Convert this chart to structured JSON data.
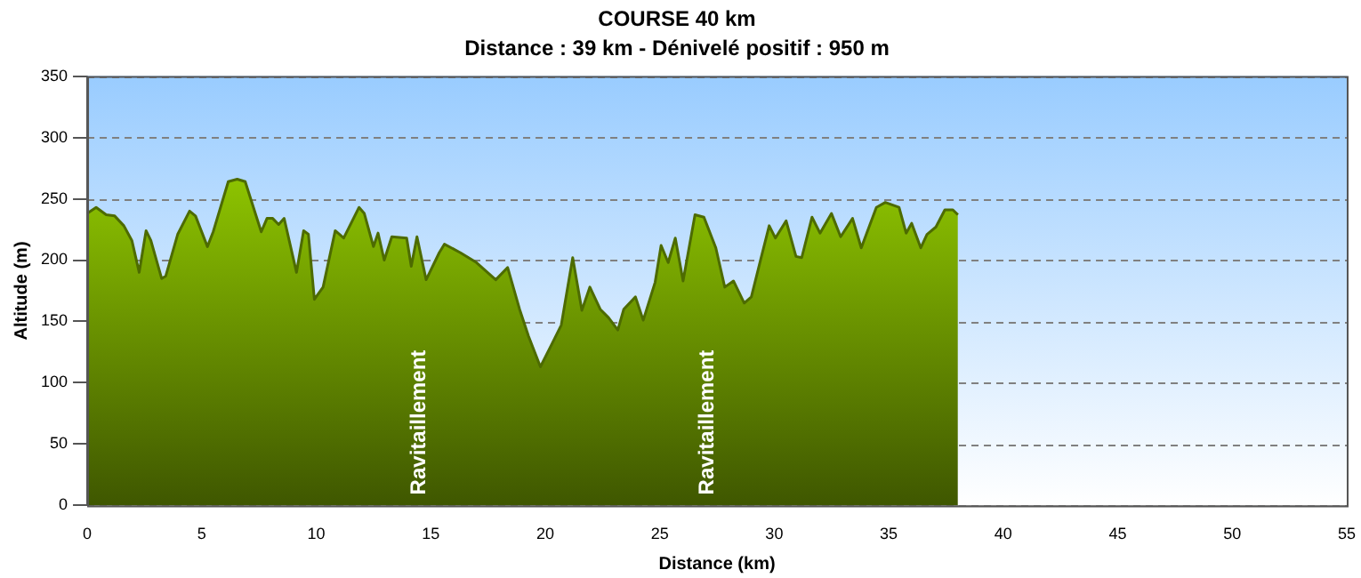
{
  "chart_data": {
    "type": "area",
    "title": "COURSE 40 km",
    "subtitle": "Distance : 39 km - Dénivelé positif : 950 m",
    "xlabel": "Distance (km)",
    "ylabel": "Altitude (m)",
    "x": [
      0,
      0.39,
      0.83,
      1.2,
      1.6,
      1.95,
      2.27,
      2.57,
      2.78,
      3.25,
      3.43,
      3.95,
      4.47,
      4.73,
      5.25,
      5.5,
      6.16,
      6.55,
      6.9,
      7.6,
      7.85,
      8.1,
      8.36,
      8.6,
      9.14,
      9.45,
      9.66,
      9.92,
      10.3,
      10.83,
      11.2,
      11.87,
      12.1,
      12.5,
      12.7,
      12.97,
      13.3,
      13.95,
      14.15,
      14.4,
      14.8,
      15.37,
      15.6,
      16.3,
      17.0,
      17.84,
      18.36,
      18.88,
      19.27,
      19.79,
      20.3,
      20.7,
      21.2,
      21.6,
      21.95,
      22.4,
      22.77,
      23.17,
      23.43,
      23.94,
      24.28,
      24.8,
      25.06,
      25.37,
      25.68,
      26.02,
      26.54,
      26.93,
      27.45,
      27.84,
      28.22,
      28.69,
      29.0,
      29.4,
      29.78,
      30.05,
      30.52,
      30.95,
      31.2,
      31.65,
      32.0,
      32.5,
      32.9,
      33.42,
      33.8,
      34.46,
      34.85,
      35.45,
      35.76,
      36.0,
      36.4,
      36.67,
      37.06,
      37.45,
      37.8,
      38.02
    ],
    "series": [
      {
        "color": "#8cc200",
        "values": [
          238,
          243,
          237,
          236,
          228,
          216,
          190,
          224,
          216,
          185,
          187,
          221,
          240,
          236,
          211,
          223,
          264,
          266,
          264,
          223,
          234,
          234,
          229,
          234,
          190,
          224,
          221,
          168,
          178,
          224,
          218,
          243,
          238,
          211,
          222,
          200,
          219,
          218,
          195,
          219,
          184,
          206,
          213,
          206,
          198,
          184,
          194,
          160,
          138,
          113,
          132,
          147,
          202,
          159,
          178,
          160,
          153,
          143,
          160,
          170,
          151,
          182,
          212,
          198,
          218,
          183,
          237,
          235,
          210,
          178,
          183,
          165,
          170,
          200,
          228,
          218,
          232,
          203,
          202,
          235,
          222,
          238,
          219,
          234,
          210,
          243,
          247,
          243,
          222,
          230,
          210,
          221,
          227,
          241,
          241,
          237
        ]
      }
    ],
    "xlim": [
      0,
      55
    ],
    "xticks": [
      0,
      5,
      10,
      15,
      20,
      25,
      30,
      35,
      40,
      45,
      50,
      55
    ],
    "ylim": [
      0,
      350
    ],
    "yticks": [
      0,
      50,
      100,
      150,
      200,
      250,
      300,
      350
    ],
    "grid": "y",
    "legend": false,
    "marker": "none",
    "annotations": [
      "Ravitaillement",
      "Ravitaillement"
    ]
  }
}
